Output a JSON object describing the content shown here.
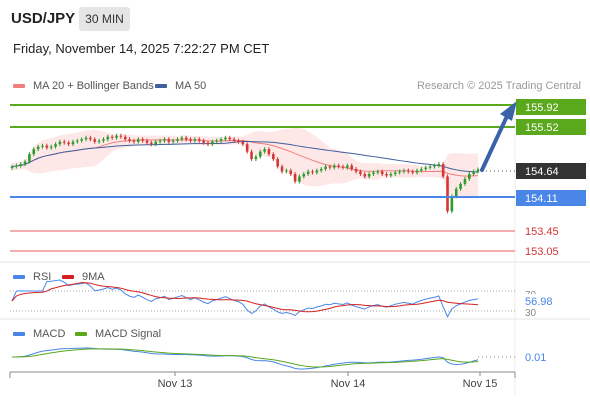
{
  "header": {
    "symbol": "USD/JPY",
    "timeframe": "30 MIN",
    "datetime": "Friday, November 14, 2025 7:22:27 PM CET",
    "credit": "Research © 2025 Trading Central"
  },
  "legend": {
    "ma20": "MA 20 + Bollinger Bands",
    "ma50": "MA 50",
    "rsi": "RSI",
    "rsi_ma": "9MA",
    "macd": "MACD",
    "macd_signal": "MACD Signal"
  },
  "colors": {
    "bollinger_fill": "#fde3e3",
    "ma20": "#f08080",
    "ma50": "#3f5f9f",
    "candle_up": "#2a9d2a",
    "candle_down": "#d43535",
    "resistance": "#5aa81c",
    "support": "#4a86e8",
    "minor_level": "#e05c5c",
    "current_price": "#333333",
    "arrow": "#3a62a8"
  },
  "chart_data": [
    {
      "type": "candlestick",
      "ylim": [
        152.9,
        156.1
      ],
      "x_ticks": [
        "Nov 13",
        "Nov 14",
        "Nov 15"
      ],
      "close": [
        154.7,
        154.72,
        154.75,
        154.8,
        154.95,
        155.05,
        155.1,
        155.12,
        155.08,
        155.1,
        155.15,
        155.2,
        155.18,
        155.15,
        155.2,
        155.22,
        155.25,
        155.28,
        155.25,
        155.2,
        155.22,
        155.25,
        155.3,
        155.28,
        155.32,
        155.3,
        155.25,
        155.22,
        155.2,
        155.25,
        155.22,
        155.18,
        155.15,
        155.2,
        155.22,
        155.25,
        155.2,
        155.22,
        155.25,
        155.28,
        155.25,
        155.22,
        155.25,
        155.22,
        155.18,
        155.15,
        155.2,
        155.22,
        155.25,
        155.28,
        155.25,
        155.22,
        155.2,
        155.15,
        155.0,
        154.85,
        154.9,
        155.0,
        155.05,
        154.95,
        154.85,
        154.7,
        154.6,
        154.62,
        154.55,
        154.4,
        154.5,
        154.55,
        154.6,
        154.58,
        154.62,
        154.65,
        154.7,
        154.68,
        154.72,
        154.7,
        154.68,
        154.72,
        154.65,
        154.6,
        154.55,
        154.5,
        154.55,
        154.58,
        154.6,
        154.55,
        154.52,
        154.55,
        154.58,
        154.6,
        154.62,
        154.6,
        154.58,
        154.62,
        154.65,
        154.68,
        154.7,
        154.72,
        154.75,
        154.5,
        153.8,
        154.1,
        154.25,
        154.35,
        154.45,
        154.55,
        154.6,
        154.64
      ]
    },
    {
      "type": "levels",
      "current_price": "154.64",
      "resistance": [
        "155.92",
        "155.52"
      ],
      "support": "154.11",
      "minor_levels": [
        "153.45",
        "153.05"
      ]
    },
    {
      "type": "line",
      "title": "RSI",
      "series": [
        "RSI",
        "9MA"
      ],
      "last_value": "56.98",
      "y_ticks": [
        "70",
        "30"
      ]
    },
    {
      "type": "line",
      "title": "MACD",
      "series": [
        "MACD",
        "MACD Signal"
      ],
      "last_value": "0.01"
    }
  ]
}
